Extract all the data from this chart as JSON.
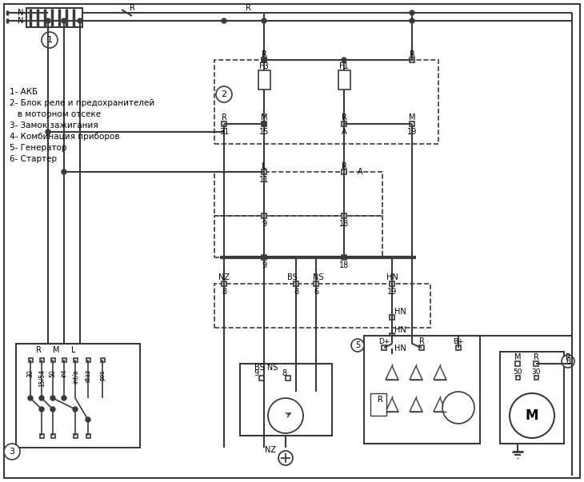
{
  "title": "",
  "bg_color": "#ffffff",
  "line_color": "#3a3a3a",
  "text_color": "#000000",
  "legend": [
    "1- АКБ",
    "2- Блок реле и предохранителей",
    "   в моторном отсеке",
    "3- Замок зажигания",
    "4- Комбинация приборов",
    "5- Генератор",
    "6- Стартер"
  ],
  "figsize": [
    7.3,
    6.03
  ],
  "dpi": 100
}
